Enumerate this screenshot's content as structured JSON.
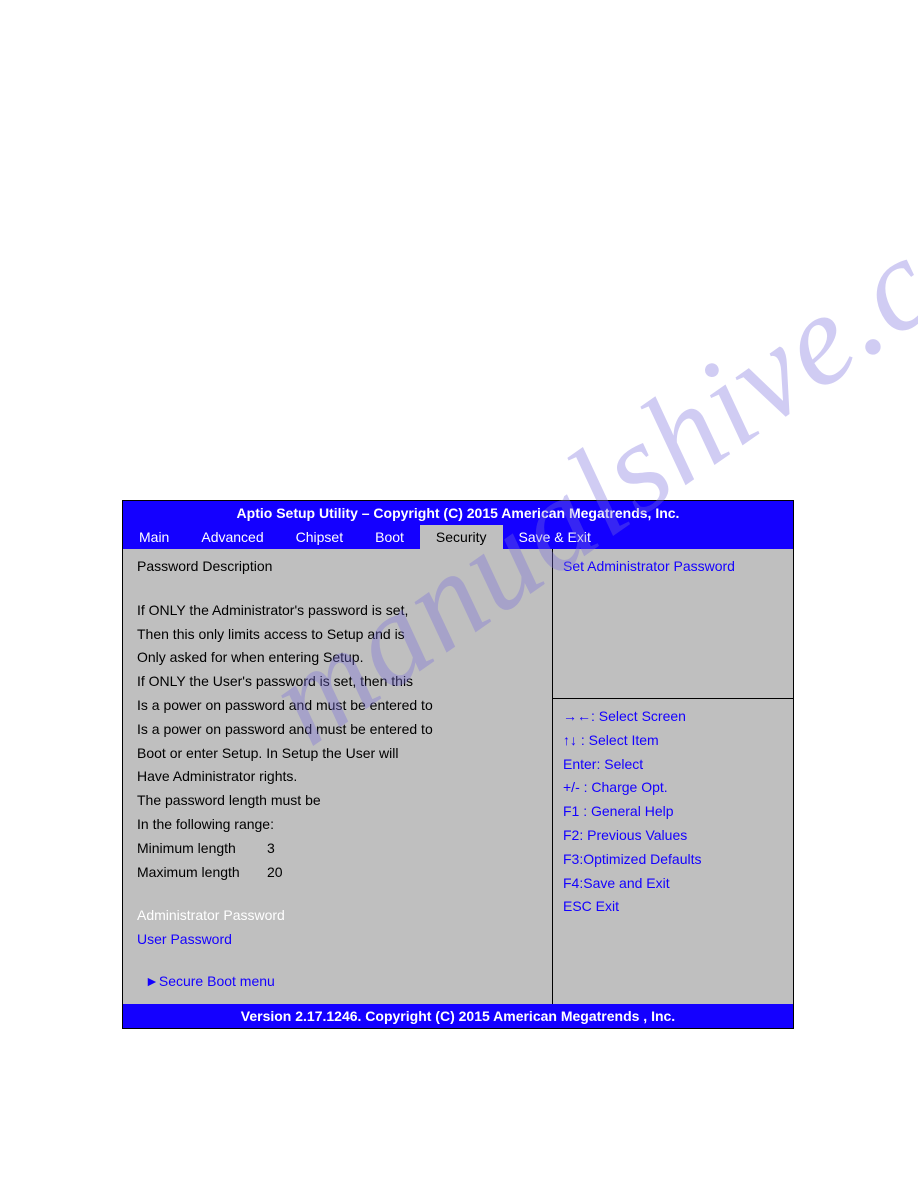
{
  "watermark": "manualshive.com",
  "colors": {
    "blue": "#1400ff",
    "panel_bg": "#bfbfbf",
    "white": "#ffffff",
    "black": "#000000"
  },
  "title": "Aptio Setup Utility – Copyright (C) 2015 American Megatrends, Inc.",
  "menu": {
    "items": [
      "Main",
      "Advanced",
      "Chipset",
      "Boot",
      "Security",
      "Save & Exit"
    ],
    "active_index": 4
  },
  "left": {
    "heading": "Password Description",
    "body": [
      "If ONLY the Administrator's password is set,",
      "Then this only limits access to Setup and is",
      "Only asked for when entering Setup.",
      "If ONLY the User's password is set, then this",
      "Is a power on password and must be entered to",
      "Is a power on password and must be entered to",
      "Boot or enter Setup. In Setup the User will",
      "Have Administrator rights.",
      "The password length must be",
      "In the following range:"
    ],
    "min_label": "Minimum length",
    "min_value": "3",
    "max_label": "Maximum length",
    "max_value": "20",
    "admin_pwd": "Administrator Password",
    "user_pwd": "User Password",
    "secure_boot": "►Secure Boot menu"
  },
  "help": {
    "text": "Set Administrator Password"
  },
  "keys": [
    "→←: Select Screen",
    "↑↓   : Select Item",
    "Enter:   Select",
    "+/- : Charge Opt.",
    "F1 : General Help",
    "F2: Previous Values",
    "F3:Optimized Defaults",
    "F4:Save and Exit",
    "ESC   Exit"
  ],
  "footer": "Version 2.17.1246. Copyright (C) 2015 American Megatrends , Inc."
}
